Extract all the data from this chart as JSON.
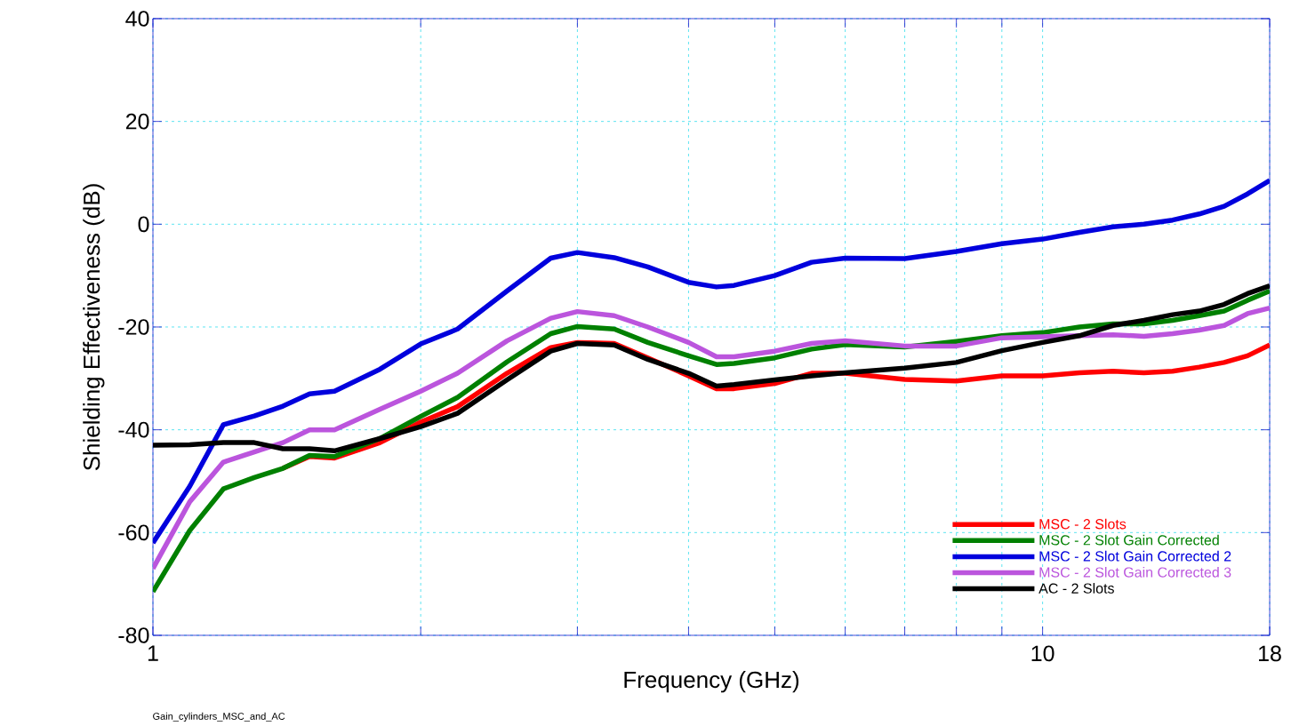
{
  "chart_data": {
    "type": "line",
    "xlabel": "Frequency (GHz)",
    "ylabel": "Shielding Effectiveness (dB)",
    "annotations": [
      "Gain_cylinders_MSC_and_AC"
    ],
    "log": "x",
    "grid": true,
    "legend": "bottom right",
    "xlim": [
      1,
      18
    ],
    "ylim": [
      -80,
      40
    ],
    "xticks": [
      1,
      {
        "value": 2,
        "label": null
      },
      {
        "value": 3,
        "label": null
      },
      {
        "value": 4,
        "label": null
      },
      {
        "value": 5,
        "label": null
      },
      {
        "value": 6,
        "label": null
      },
      {
        "value": 7,
        "label": null
      },
      {
        "value": 8,
        "label": null
      },
      {
        "value": 9,
        "label": null
      },
      10,
      18
    ],
    "yticks": [
      -80,
      -60,
      -40,
      -20,
      0,
      20,
      40
    ],
    "x": [
      1,
      1.1,
      1.2,
      1.3,
      1.4,
      1.5,
      1.6,
      1.8,
      2,
      2.2,
      2.5,
      2.8,
      3,
      3.3,
      3.6,
      4,
      4.3,
      4.5,
      5,
      5.5,
      6,
      7,
      8,
      9,
      10,
      11,
      12,
      13,
      14,
      15,
      16,
      17,
      18
    ],
    "series": [
      {
        "name": "MSC - 2 Slots",
        "color": "#ff0000",
        "values": [
          null,
          null,
          null,
          null,
          -47.5,
          -45.2,
          -45.5,
          -42.5,
          -38.5,
          -35.5,
          -29,
          -24,
          -23,
          -23.2,
          -26,
          -29.5,
          -32,
          -32,
          -31,
          -29,
          -29,
          -30.2,
          -30.5,
          -29.5,
          -29.5,
          -28.9,
          -28.6,
          -28.9,
          -28.6,
          -27.8,
          -26.9,
          -25.6,
          -23.5
        ]
      },
      {
        "name": "MSC - 2 Slot Gain Corrected",
        "color": "#008000",
        "values": [
          -71.5,
          -59.6,
          -51.5,
          -49.3,
          -47.5,
          -45,
          -45.2,
          -41.7,
          -37.4,
          -33.7,
          -26.8,
          -21.3,
          -19.9,
          -20.4,
          -23,
          -25.6,
          -27.3,
          -27.1,
          -26,
          -24.3,
          -23.4,
          -23.9,
          -22.8,
          -21.7,
          -21.1,
          -20,
          -19.4,
          -19.4,
          -18.7,
          -17.8,
          -16.9,
          -14.8,
          -13
        ]
      },
      {
        "name": "MSC - 2 Slot Gain Corrected 2",
        "color": "#0000dd",
        "values": [
          -62,
          -51,
          -39,
          -37.3,
          -35.4,
          -33,
          -32.5,
          -28.2,
          -23.3,
          -20.4,
          -13,
          -6.6,
          -5.5,
          -6.5,
          -8.3,
          -11.3,
          -12.2,
          -11.9,
          -10,
          -7.4,
          -6.6,
          -6.7,
          -5.3,
          -3.8,
          -2.9,
          -1.6,
          -0.5,
          0,
          0.8,
          2,
          3.5,
          5.9,
          8.5
        ]
      },
      {
        "name": "MSC - 2 Slot Gain Corrected 3",
        "color": "#bb55dd",
        "values": [
          -67,
          -54,
          -46.3,
          -44.3,
          -42.5,
          -40,
          -40,
          -36,
          -32.5,
          -29,
          -22.7,
          -18.3,
          -17,
          -17.8,
          -20,
          -23,
          -25.8,
          -25.8,
          -24.7,
          -23.2,
          -22.7,
          -23.7,
          -23.7,
          -22.1,
          -21.9,
          -21.7,
          -21.5,
          -21.8,
          -21.3,
          -20.6,
          -19.7,
          -17.4,
          -16.3
        ]
      },
      {
        "name": "AC - 2 Slots",
        "color": "#000000",
        "values": [
          -43,
          -42.9,
          -42.5,
          -42.5,
          -43.7,
          -43.7,
          -44.1,
          -41.7,
          -39.4,
          -36.8,
          -30.3,
          -24.7,
          -23.2,
          -23.5,
          -26.3,
          -29,
          -31.5,
          -31.2,
          -30.3,
          -29.5,
          -28.9,
          -28,
          -26.9,
          -24.6,
          -23,
          -21.7,
          -19.7,
          -18.7,
          -17.6,
          -16.9,
          -15.6,
          -13.5,
          -12
        ]
      }
    ]
  }
}
